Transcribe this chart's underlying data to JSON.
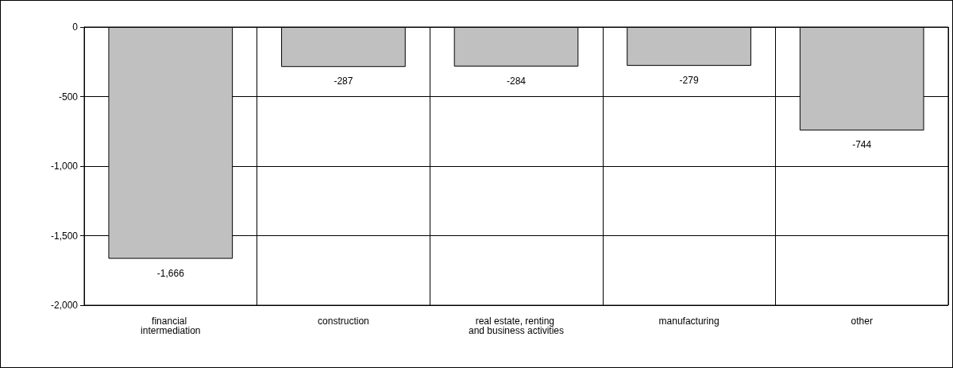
{
  "chart_data": {
    "type": "bar",
    "categories": [
      "financial intermediation",
      "construction",
      "real estate, renting and business activities",
      "manufacturing",
      "other"
    ],
    "values": [
      -1666,
      -287,
      -284,
      -279,
      -744
    ],
    "color": "#c0c0c0",
    "ylim": [
      -2000,
      0
    ],
    "yticks": [
      {
        "value": -2000,
        "label": "-2,000"
      },
      {
        "value": -1500,
        "label": "-1,500"
      },
      {
        "value": -1000,
        "label": "-1,000"
      },
      -500,
      0
    ],
    "grid": true,
    "value_labels": [
      "-1,666",
      "-287",
      "-284",
      "-279",
      "-744"
    ]
  }
}
